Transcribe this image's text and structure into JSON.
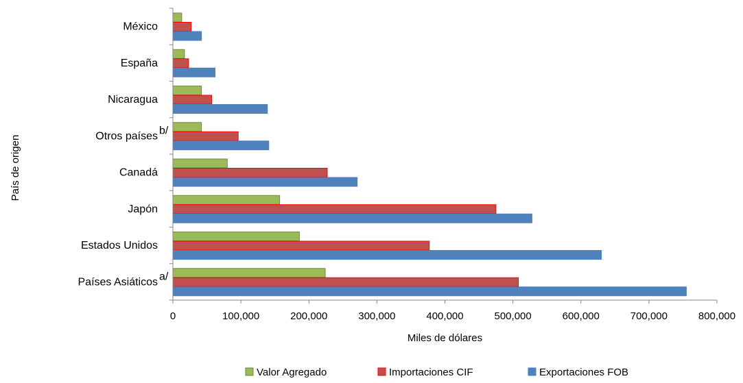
{
  "chart_data": {
    "type": "bar",
    "orientation": "horizontal",
    "categories": [
      "Países Asiáticos",
      "Estados Unidos",
      "Japón",
      "Canadá",
      "Otros países",
      "Nicaragua",
      "España",
      "México"
    ],
    "category_superscripts": [
      "a/",
      "",
      "",
      "",
      "b/",
      "",
      "",
      ""
    ],
    "series": [
      {
        "name": "Valor Agregado",
        "color": "#9bbb59",
        "stroke": "#71893f",
        "values": [
          224000,
          186000,
          157000,
          80000,
          42000,
          42000,
          17000,
          13000
        ]
      },
      {
        "name": "Importaciones CIF",
        "color": "#c0504d",
        "stroke": "#ff0000",
        "values": [
          508000,
          377000,
          475000,
          227000,
          96000,
          57000,
          23000,
          27000
        ]
      },
      {
        "name": "Exportaciones FOB",
        "color": "#4f81bd",
        "stroke": "#4a7ebb",
        "values": [
          755000,
          630000,
          528000,
          271000,
          141000,
          139000,
          62000,
          42000
        ]
      }
    ],
    "xlim": [
      0,
      800000
    ],
    "xticks": [
      0,
      100000,
      200000,
      300000,
      400000,
      500000,
      600000,
      700000,
      800000
    ],
    "xtick_labels": [
      "0",
      "100,000",
      "200,000",
      "300,000",
      "400,000",
      "500,000",
      "600,000",
      "700,000",
      "800,000"
    ],
    "xlabel": "Miles de dólares",
    "ylabel": "País de origen",
    "grid": false,
    "legend_position": "bottom",
    "legend_order": [
      "Valor Agregado",
      "Importaciones CIF",
      "Exportaciones FOB"
    ]
  }
}
